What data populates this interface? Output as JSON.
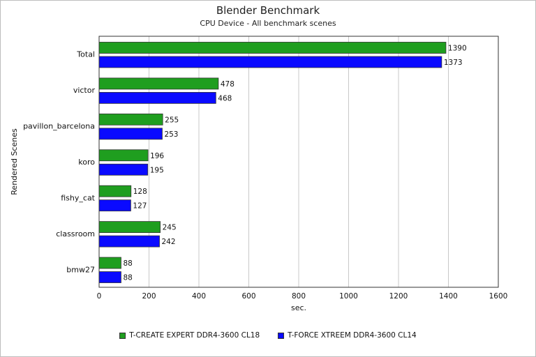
{
  "chart_data": {
    "type": "bar",
    "orientation": "horizontal",
    "title": "Blender Benchmark",
    "subtitle": "CPU Device - All benchmark scenes",
    "xlabel": "sec.",
    "ylabel": "Rendered Scenes",
    "xlim": [
      0,
      1600
    ],
    "xticks": [
      0,
      200,
      400,
      600,
      800,
      1000,
      1200,
      1400,
      1600
    ],
    "grid": "vertical",
    "legend_position": "bottom",
    "categories": [
      "Total",
      "victor",
      "pavillon_barcelona",
      "koro",
      "fishy_cat",
      "classroom",
      "bmw27"
    ],
    "series": [
      {
        "name": "T-CREATE EXPERT DDR4-3600 CL18",
        "color": "#1f9e1f",
        "values": [
          1390,
          478,
          255,
          196,
          128,
          245,
          88
        ]
      },
      {
        "name": "T-FORCE XTREEM DDR4-3600 CL14",
        "color": "#0a0aff",
        "values": [
          1373,
          468,
          253,
          195,
          127,
          242,
          88
        ]
      }
    ]
  }
}
